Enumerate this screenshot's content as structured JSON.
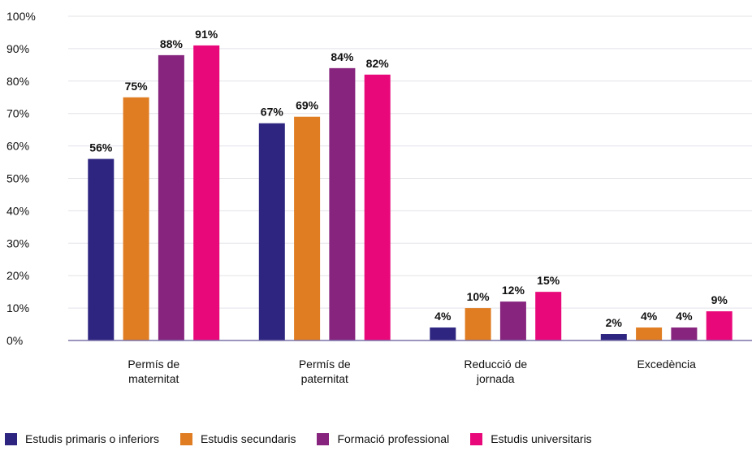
{
  "chart_data": {
    "type": "bar",
    "title": "",
    "xlabel": "",
    "ylabel": "",
    "ylim": [
      0,
      100
    ],
    "y_ticks": [
      "0%",
      "10%",
      "20%",
      "30%",
      "40%",
      "50%",
      "60%",
      "70%",
      "80%",
      "90%",
      "100%"
    ],
    "grid": true,
    "legend_position": "bottom",
    "categories": [
      [
        "Permís de",
        "maternitat"
      ],
      [
        "Permís de",
        "paternitat"
      ],
      [
        "Reducció de",
        "jornada"
      ],
      [
        "Excedència"
      ]
    ],
    "series": [
      {
        "name": "Estudis primaris o inferiors",
        "color": "#2e2580",
        "values": [
          56,
          67,
          4,
          2
        ],
        "labels": [
          "56%",
          "67%",
          "4%",
          "2%"
        ]
      },
      {
        "name": "Estudis secundaris",
        "color": "#e07d22",
        "values": [
          75,
          69,
          10,
          4
        ],
        "labels": [
          "75%",
          "69%",
          "10%",
          "4%"
        ]
      },
      {
        "name": "Formació professional",
        "color": "#87247e",
        "values": [
          88,
          84,
          12,
          4
        ],
        "labels": [
          "88%",
          "84%",
          "12%",
          "4%"
        ]
      },
      {
        "name": "Estudis universitaris",
        "color": "#e8087a",
        "values": [
          91,
          82,
          15,
          9
        ],
        "labels": [
          "91%",
          "82%",
          "15%",
          "9%"
        ]
      }
    ]
  }
}
